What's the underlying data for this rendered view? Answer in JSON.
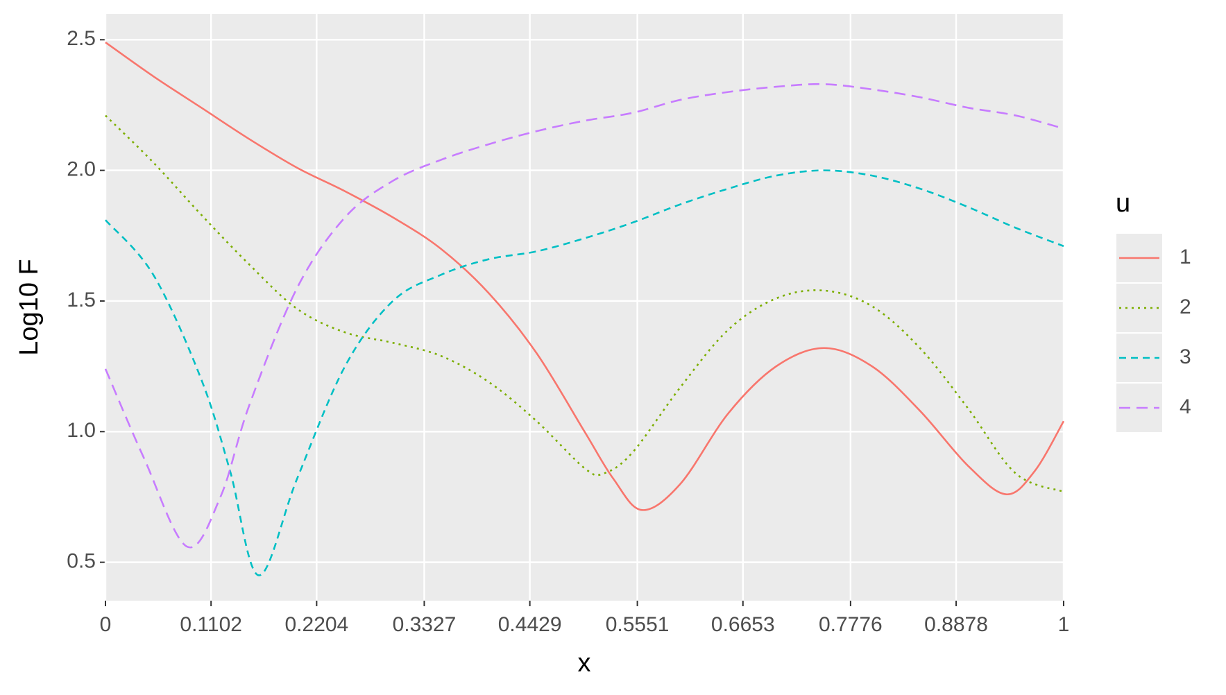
{
  "chart_data": {
    "type": "line",
    "x_label": "x",
    "y_label": "Log10 F",
    "legend_title": "u",
    "legend_position": "right",
    "grid": true,
    "xlim": [
      0,
      1
    ],
    "ylim": [
      0.353,
      2.599
    ],
    "xticks": [
      0,
      0.1102,
      0.2204,
      0.3327,
      0.4429,
      0.5551,
      0.6653,
      0.7776,
      0.8878,
      1
    ],
    "yticks": [
      0.5,
      {
        "value": 1,
        "label": "1.0"
      },
      1.5,
      {
        "value": 2,
        "label": "2.0"
      },
      2.5
    ],
    "series": [
      {
        "name": "1",
        "color": "#F8766D",
        "dash": "solid",
        "x": [
          0,
          0.05,
          0.1,
          0.15,
          0.2,
          0.25,
          0.3,
          0.35,
          0.4,
          0.45,
          0.5,
          0.53,
          0.56,
          0.6,
          0.65,
          0.7,
          0.75,
          0.8,
          0.85,
          0.9,
          0.94,
          0.97,
          1
        ],
        "values": [
          2.49,
          2.36,
          2.24,
          2.12,
          2.01,
          1.92,
          1.82,
          1.7,
          1.53,
          1.3,
          1.0,
          0.82,
          0.7,
          0.8,
          1.07,
          1.25,
          1.32,
          1.25,
          1.08,
          0.87,
          0.76,
          0.85,
          1.04
        ]
      },
      {
        "name": "2",
        "color": "#7CAE00",
        "dash": "dotted",
        "x": [
          0,
          0.05,
          0.1,
          0.15,
          0.2,
          0.25,
          0.3,
          0.35,
          0.4,
          0.45,
          0.5,
          0.52,
          0.55,
          0.6,
          0.65,
          0.7,
          0.75,
          0.8,
          0.85,
          0.9,
          0.95,
          1
        ],
        "values": [
          2.21,
          2.03,
          1.83,
          1.64,
          1.47,
          1.38,
          1.34,
          1.29,
          1.19,
          1.04,
          0.86,
          0.84,
          0.92,
          1.17,
          1.39,
          1.51,
          1.54,
          1.48,
          1.32,
          1.09,
          0.84,
          0.77
        ]
      },
      {
        "name": "3",
        "color": "#00BFC4",
        "dash": "dashed",
        "x": [
          0,
          0.05,
          0.1,
          0.13,
          0.16,
          0.2,
          0.25,
          0.3,
          0.35,
          0.4,
          0.45,
          0.5,
          0.55,
          0.6,
          0.65,
          0.7,
          0.75,
          0.8,
          0.85,
          0.9,
          0.95,
          1
        ],
        "values": [
          1.81,
          1.6,
          1.2,
          0.85,
          0.45,
          0.82,
          1.25,
          1.5,
          1.6,
          1.66,
          1.69,
          1.74,
          1.8,
          1.87,
          1.93,
          1.98,
          2.0,
          1.98,
          1.93,
          1.86,
          1.78,
          1.71
        ]
      },
      {
        "name": "4",
        "color": "#C77CFF",
        "dash": "longdash",
        "x": [
          0,
          0.04,
          0.085,
          0.12,
          0.15,
          0.2,
          0.25,
          0.3,
          0.35,
          0.4,
          0.45,
          0.5,
          0.55,
          0.6,
          0.65,
          0.7,
          0.75,
          0.8,
          0.85,
          0.9,
          0.95,
          1
        ],
        "values": [
          1.24,
          0.9,
          0.56,
          0.75,
          1.1,
          1.55,
          1.82,
          1.96,
          2.04,
          2.1,
          2.15,
          2.19,
          2.22,
          2.27,
          2.3,
          2.32,
          2.33,
          2.31,
          2.28,
          2.24,
          2.21,
          2.16
        ]
      }
    ]
  }
}
